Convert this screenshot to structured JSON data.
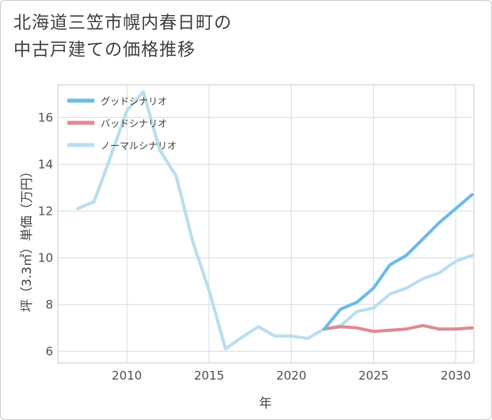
{
  "chart_data": {
    "type": "line",
    "title_lines": [
      "北海道三笠市幌内春日町の",
      "中古戸建ての価格推移"
    ],
    "xlabel": "年",
    "ylabel": "坪（3.3㎡）単価（万円）",
    "xlim": [
      2005.8,
      2031.1
    ],
    "ylim": [
      5.5,
      17.4
    ],
    "x_ticks": [
      2010,
      2015,
      2020,
      2025,
      2030
    ],
    "y_ticks": [
      6,
      8,
      10,
      12,
      14,
      16
    ],
    "grid": true,
    "legend_position": "top-left",
    "series": [
      {
        "name": "グッドシナリオ",
        "color": "#6bbce9",
        "x": [
          2022,
          2023,
          2024,
          2025,
          2026,
          2027,
          2028,
          2029,
          2030,
          2031
        ],
        "values": [
          6.95,
          7.8,
          8.1,
          8.7,
          9.7,
          10.1,
          10.8,
          11.5,
          12.1,
          12.7
        ]
      },
      {
        "name": "バッドシナリオ",
        "color": "#e08a94",
        "x": [
          2022,
          2023,
          2024,
          2025,
          2026,
          2027,
          2028,
          2029,
          2030,
          2031
        ],
        "values": [
          6.95,
          7.05,
          7.0,
          6.85,
          6.9,
          6.95,
          7.1,
          6.95,
          6.95,
          7.0
        ]
      },
      {
        "name": "ノーマルシナリオ",
        "color": "#b9dfee",
        "x": [
          2007,
          2008,
          2009,
          2010,
          2011,
          2012,
          2013,
          2014,
          2015,
          2016,
          2017,
          2018,
          2019,
          2020,
          2021,
          2022,
          2023,
          2024,
          2025,
          2026,
          2027,
          2028,
          2029,
          2030,
          2031
        ],
        "values": [
          12.1,
          12.4,
          14.3,
          16.3,
          17.1,
          14.6,
          13.5,
          10.7,
          8.6,
          6.1,
          6.6,
          7.05,
          6.65,
          6.65,
          6.55,
          6.95,
          7.1,
          7.7,
          7.85,
          8.45,
          8.7,
          9.1,
          9.35,
          9.85,
          10.1
        ]
      }
    ]
  }
}
